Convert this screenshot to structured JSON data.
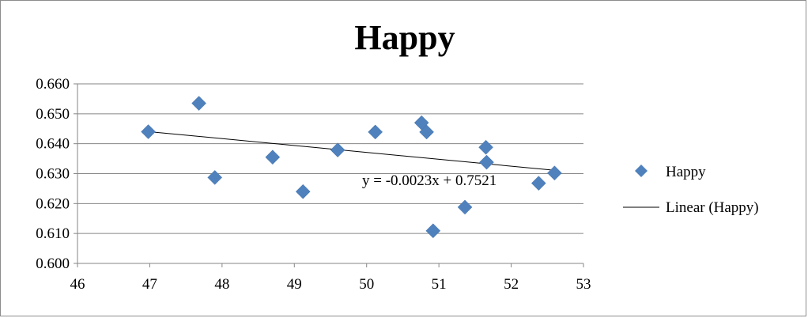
{
  "chart_data": {
    "type": "scatter",
    "title": "Happy",
    "xlabel": "",
    "ylabel": "",
    "xlim": [
      46,
      53
    ],
    "ylim": [
      0.6,
      0.66
    ],
    "x_ticks": [
      "46",
      "47",
      "48",
      "49",
      "50",
      "51",
      "52",
      "53"
    ],
    "y_ticks": [
      "0.600",
      "0.610",
      "0.620",
      "0.630",
      "0.640",
      "0.650",
      "0.660"
    ],
    "grid": "horizontal",
    "legend_position": "right",
    "colors": {
      "marker": "#4f81bd",
      "trendline": "#000000",
      "grid": "#868686"
    },
    "series": [
      {
        "name": "Happy",
        "marker": "diamond",
        "x": [
          46.98,
          47.68,
          47.9,
          48.7,
          49.12,
          49.6,
          50.12,
          50.76,
          50.83,
          50.92,
          51.36,
          51.65,
          51.66,
          52.38,
          52.6
        ],
        "y": [
          0.644,
          0.6535,
          0.6287,
          0.6355,
          0.624,
          0.6379,
          0.6439,
          0.647,
          0.6439,
          0.6109,
          0.6188,
          0.6388,
          0.6338,
          0.6268,
          0.6302
        ]
      }
    ],
    "trendline": {
      "name": "Linear (Happy)",
      "slope": -0.0023,
      "intercept": 0.7521,
      "x_range": [
        46.98,
        52.6
      ],
      "equation_label": "y = -0.0023x + 0.7521"
    }
  }
}
